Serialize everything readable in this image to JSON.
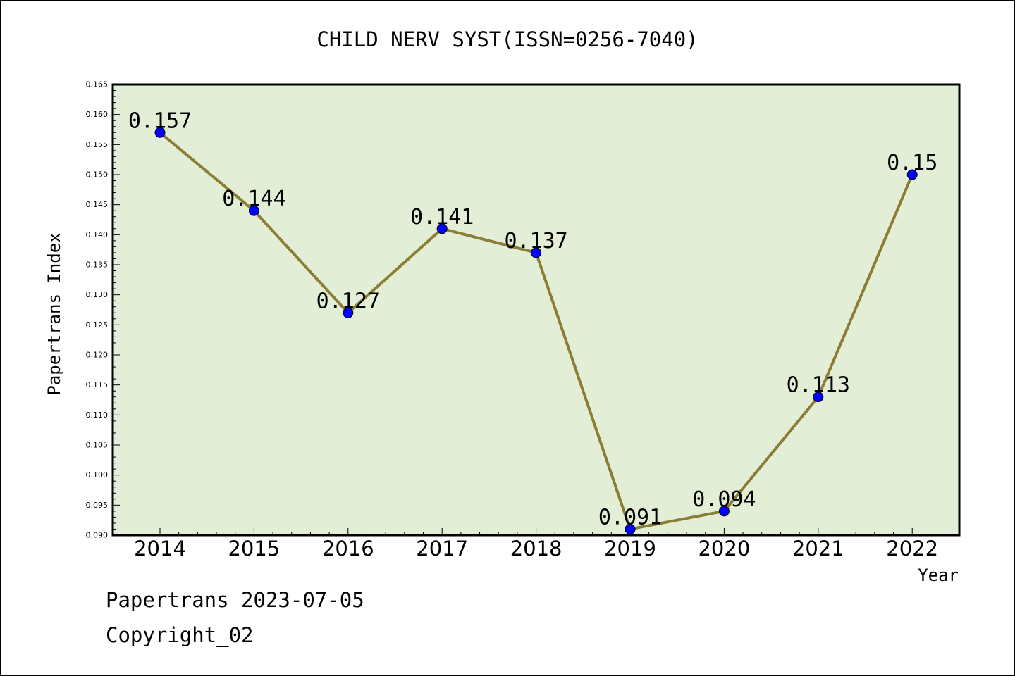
{
  "chart_data": {
    "type": "line",
    "title": "CHILD NERV SYST(ISSN=0256-7040)",
    "xlabel": "Year",
    "ylabel": "Papertrans Index",
    "categories": [
      "2014",
      "2015",
      "2016",
      "2017",
      "2018",
      "2019",
      "2020",
      "2021",
      "2022"
    ],
    "series": [
      {
        "values": [
          0.157,
          0.144,
          0.127,
          0.141,
          0.137,
          0.091,
          0.094,
          0.113,
          0.15
        ],
        "labels": [
          "0.157",
          "0.144",
          "0.127",
          "0.141",
          "0.137",
          "0.091",
          "0.094",
          "0.113",
          "0.15"
        ]
      }
    ],
    "ylim": [
      0.09,
      0.165
    ],
    "yticks": [
      "0.090",
      "0.095",
      "0.100",
      "0.105",
      "0.110",
      "0.115",
      "0.120",
      "0.125",
      "0.130",
      "0.135",
      "0.140",
      "0.145",
      "0.150",
      "0.155",
      "0.160",
      "0.165"
    ],
    "grid": false,
    "colors": {
      "plot_bg": "#e2efd6",
      "line": "#8b7d35",
      "marker": "#0000ff"
    }
  },
  "footer": {
    "line1": "Papertrans 2023-07-05",
    "line2": "Copyright_02"
  }
}
